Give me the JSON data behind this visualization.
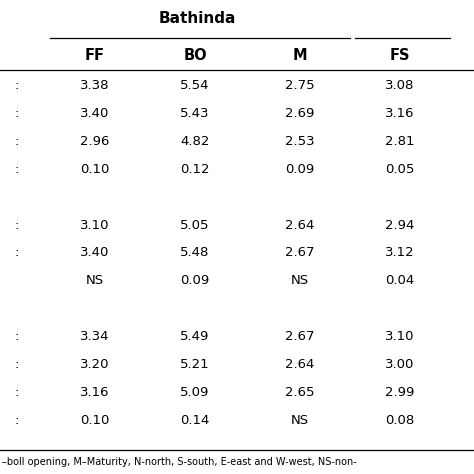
{
  "title": "Bathinda",
  "col_headers": [
    "FF",
    "BO",
    "M",
    "FS"
  ],
  "rows": [
    [
      ":",
      "3.38",
      "5.54",
      "2.75",
      "3.08"
    ],
    [
      ":",
      "3.40",
      "5.43",
      "2.69",
      "3.16"
    ],
    [
      ":",
      "2.96",
      "4.82",
      "2.53",
      "2.81"
    ],
    [
      ":",
      "0.10",
      "0.12",
      "0.09",
      "0.05"
    ],
    [
      "",
      "",
      "",
      "",
      ""
    ],
    [
      ":",
      "3.10",
      "5.05",
      "2.64",
      "2.94"
    ],
    [
      ":",
      "3.40",
      "5.48",
      "2.67",
      "3.12"
    ],
    [
      "",
      "NS",
      "0.09",
      "NS",
      "0.04"
    ],
    [
      "",
      "",
      "",
      "",
      ""
    ],
    [
      ":",
      "3.34",
      "5.49",
      "2.67",
      "3.10"
    ],
    [
      ":",
      "3.20",
      "5.21",
      "2.64",
      "3.00"
    ],
    [
      ":",
      "3.16",
      "5.09",
      "2.65",
      "2.99"
    ],
    [
      ":",
      "0.10",
      "0.14",
      "NS",
      "0.08"
    ]
  ],
  "footer": "–boll opening, M–Maturity, N-north, S-south, E-east and W-west, NS-non-",
  "bg_color": "#ffffff",
  "font_size": 9.5,
  "title_font_size": 11,
  "header_font_size": 10.5
}
